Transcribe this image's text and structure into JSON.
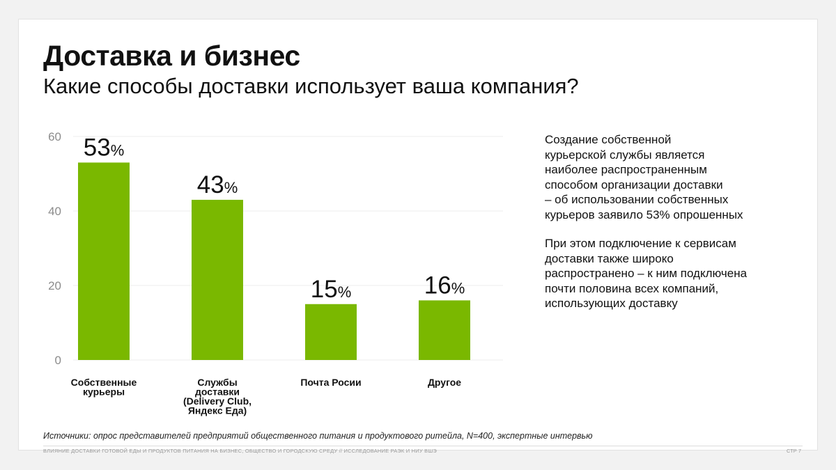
{
  "header": {
    "title": "Доставка и бизнес",
    "subtitle": "Какие способы доставки использует ваша компания?"
  },
  "chart_data": {
    "type": "bar",
    "categories": [
      [
        "Собственные",
        "курьеры"
      ],
      [
        "Службы",
        "доставки",
        "(Delivery Club,",
        "Яндекс Еда)"
      ],
      [
        "Почта Росии"
      ],
      [
        "Другое"
      ]
    ],
    "values": [
      53,
      43,
      15,
      16
    ],
    "value_suffix": "%",
    "y_ticks": [
      0,
      20,
      40,
      60
    ],
    "ylim": [
      0,
      60
    ],
    "grid": true,
    "bar_color": "#7ab800"
  },
  "side": {
    "paragraph1": "Создание собственной\nкурьерской службы является\nнаиболее распространенным\nспособом организации доставки\n– об использовании собственных\nкурьеров заявило 53% опрошенных",
    "paragraph2": "При этом подключение к сервисам\nдоставки также широко\nраспространено – к ним подключена\nпочти половина всех компаний,\nиспользующих доставку"
  },
  "source": "Источники: опрос представителей предприятий общественного питания и продуктового ритейла, N=400, экспертные интервью",
  "footer": {
    "left": "ВЛИЯНИЕ ДОСТАВКИ ГОТОВОЙ ЕДЫ И ПРОДУКТОВ ПИТАНИЯ НА БИЗНЕС, ОБЩЕСТВО И ГОРОДСКУЮ СРЕДУ // ИССЛЕДОВАНИЕ РАЭК И НИУ ВШЭ",
    "page": "СТР 7"
  }
}
